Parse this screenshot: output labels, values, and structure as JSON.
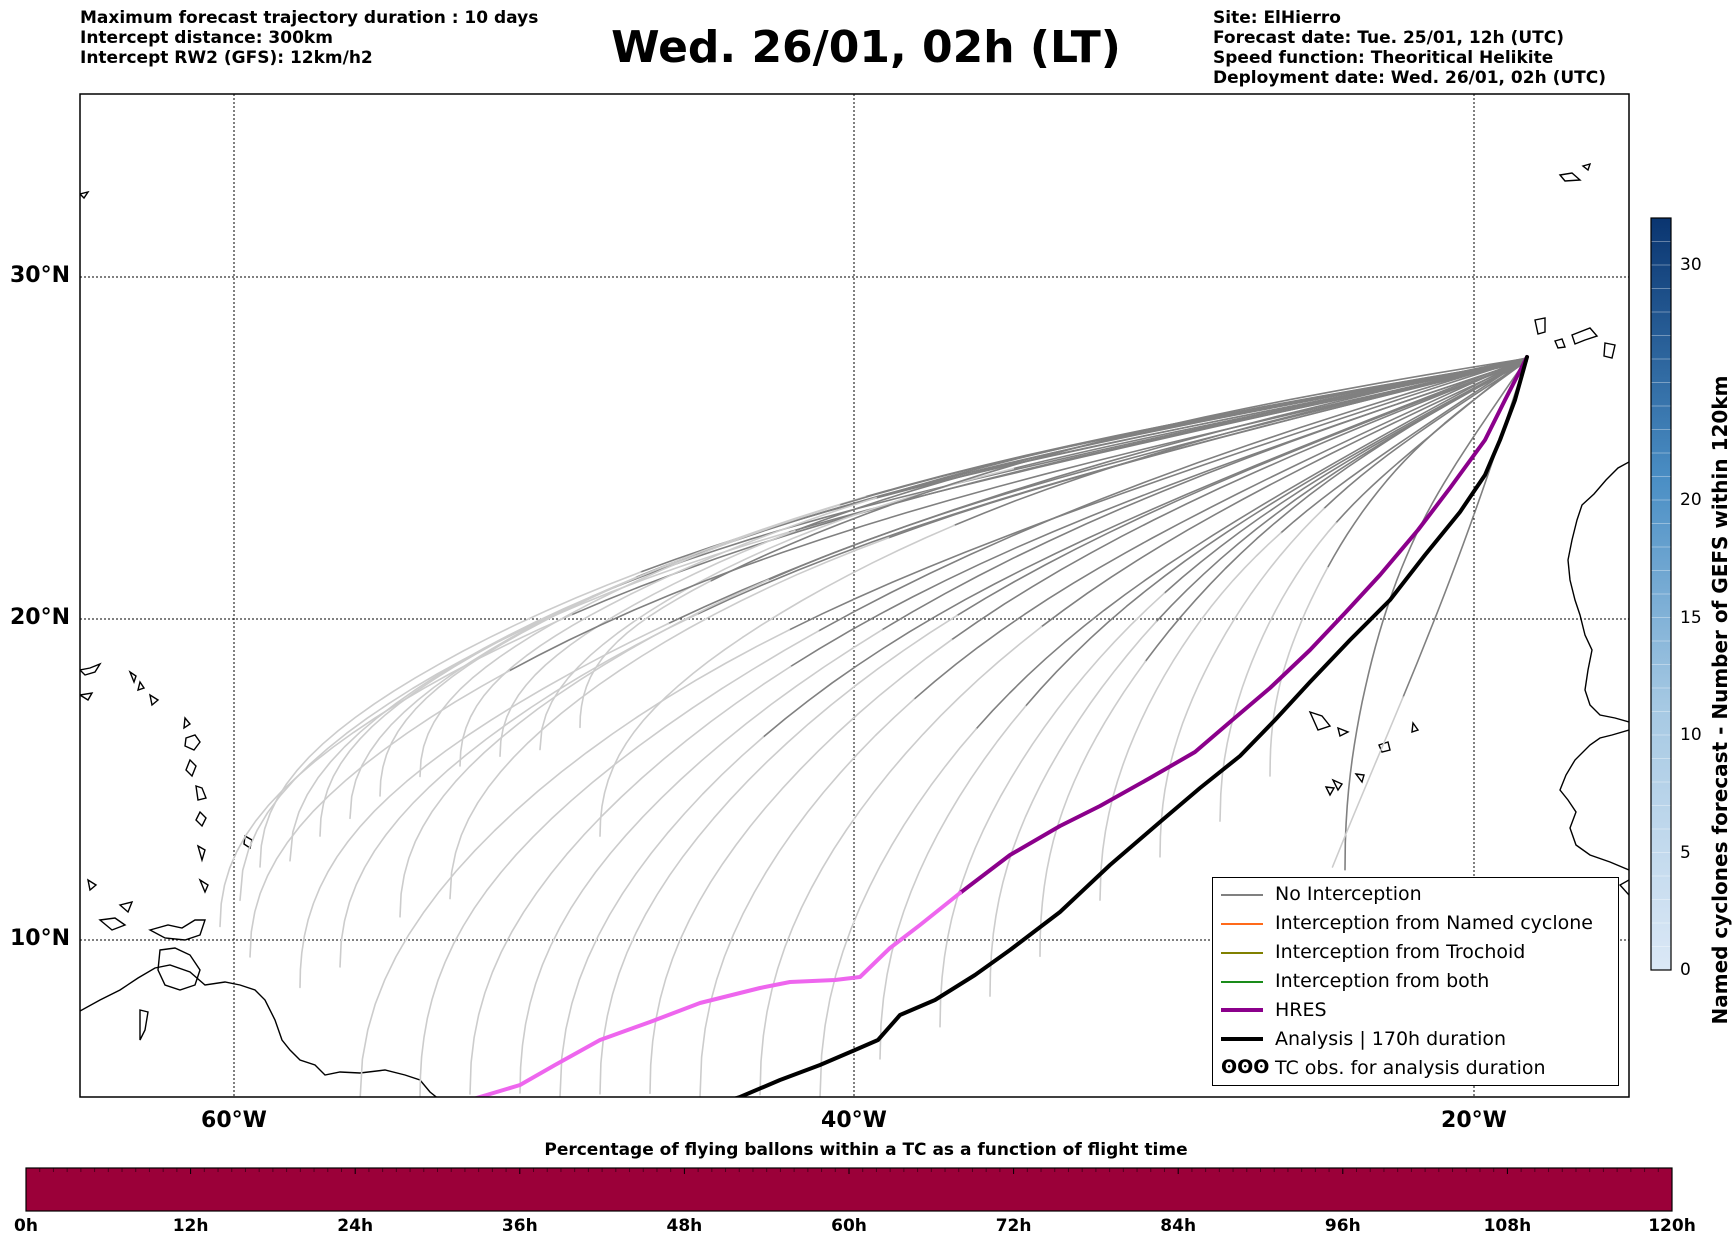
{
  "header_left": [
    "Maximum forecast trajectory duration : 10 days",
    "Intercept distance: 300km",
    "Intercept RW2 (GFS):  12km/h2"
  ],
  "title": "Wed. 26/01, 02h (LT)",
  "header_right": [
    "Site: ElHierro",
    "Forecast date: Tue. 25/01, 12h (UTC)",
    "Speed function: Theoritical Helikite",
    "Deployment date: Wed. 26/01, 02h (UTC)"
  ],
  "map": {
    "lat_labels": [
      "30°N",
      "20°N",
      "10°N"
    ],
    "lon_labels": [
      "60°W",
      "40°W",
      "20°W"
    ],
    "lat_range": [
      4.5,
      35.8
    ],
    "lon_range": [
      -65.0,
      -15.0
    ]
  },
  "legend": [
    {
      "label": "No Interception",
      "color": "#808080",
      "width": 1.5
    },
    {
      "label": "Interception from Named cyclone",
      "color": "#ff6a1a",
      "width": 1.5
    },
    {
      "label": "Interception from Trochoid",
      "color": "#808000",
      "width": 1.5
    },
    {
      "label": "Interception from both",
      "color": "#1a8c1a",
      "width": 1.5
    },
    {
      "label": "HRES",
      "color": "#8b008b",
      "width": 4
    },
    {
      "label": "Analysis | 170h duration",
      "color": "#000000",
      "width": 4
    },
    {
      "label": "TC obs. for analysis duration",
      "icon": "tc-symbol-icon",
      "symbol": "ʘʘʘ"
    }
  ],
  "colorbar_right": {
    "title": "Named cyclones forecast - Number of GEFS within 120km",
    "ticks": [
      "0",
      "5",
      "10",
      "15",
      "20",
      "30"
    ],
    "tick_values": [
      0,
      5,
      10,
      15,
      20,
      30
    ],
    "range": [
      0,
      32
    ]
  },
  "colorbar_bottom": {
    "title": "Percentage of flying ballons within a TC as a function of flight time",
    "color": "#9b0039",
    "ticks": [
      "0h",
      "12h",
      "24h",
      "36h",
      "48h",
      "60h",
      "72h",
      "84h",
      "96h",
      "108h",
      "120h"
    ]
  },
  "colors": {
    "no_interception": "#808080",
    "no_interception_light": "#cccccc",
    "hres": "#8b008b",
    "hres_light": "#ee66ee",
    "analysis": "#000000"
  }
}
